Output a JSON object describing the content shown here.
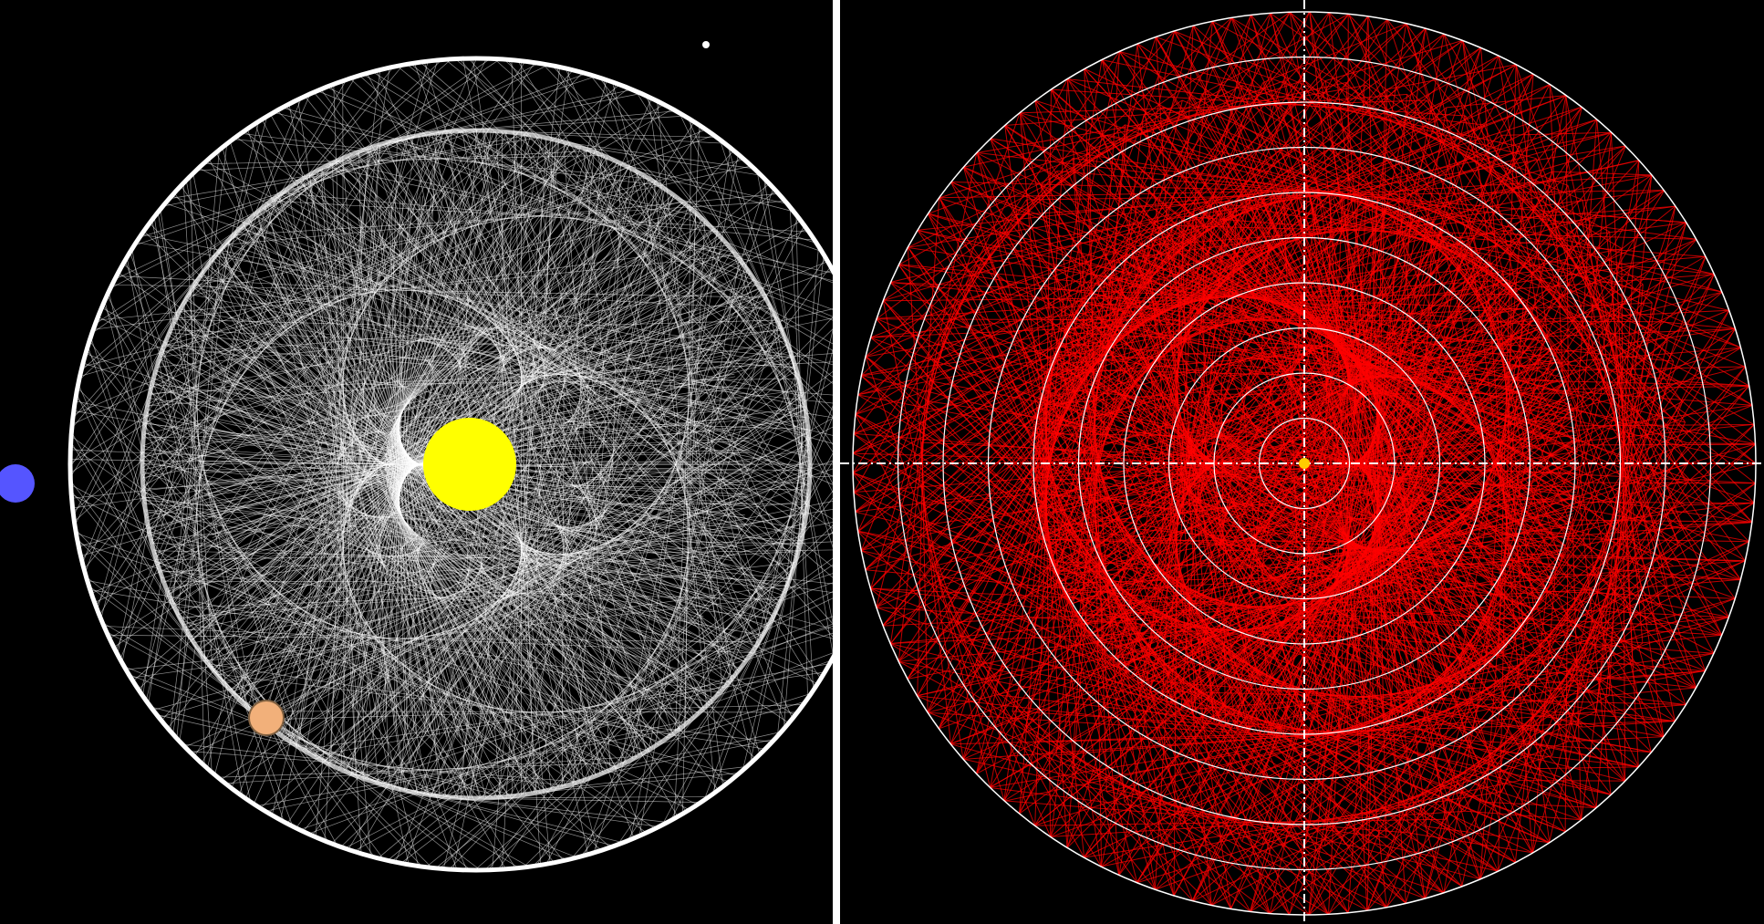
{
  "colors": {
    "background": "#000000",
    "divider": "#ffffff",
    "left_lines": "#ffffff",
    "sun": "#ffff00",
    "planet_blue": "#5555ff",
    "planet_orange": "#f2b07a",
    "right_lines": "#ff0000",
    "right_grid": "#ffffff",
    "center_marker": "#ffcc00"
  },
  "panels": {
    "left": {
      "bodies": [
        "sun",
        "blue-planet",
        "orange-planet",
        "star"
      ]
    },
    "right": {
      "grid_rings": 10
    }
  }
}
